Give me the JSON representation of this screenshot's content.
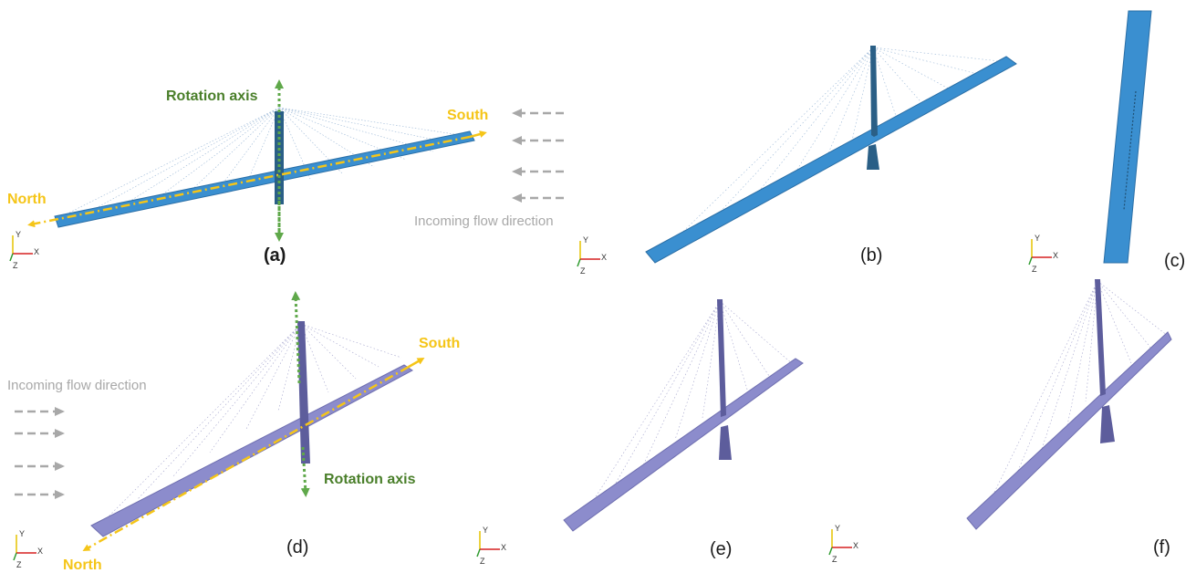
{
  "colors": {
    "blue_deck": "#3a8fd0",
    "blue_deck_dark": "#2b6fa6",
    "blue_tower": "#2a5f86",
    "purple_deck": "#8c8ccc",
    "purple_deck_dark": "#6f6fb0",
    "purple_tower": "#5d5d9c",
    "direction": "#f5c518",
    "rotation_axis": "#5fa84a",
    "rotation_label": "#4a7f2a",
    "flow": "#a8a8a8",
    "axis_x": "#d62020",
    "axis_y": "#e5c200",
    "axis_z": "#2e9a2e"
  },
  "panels": {
    "a": {
      "label": "(a)"
    },
    "b": {
      "label": "(b)"
    },
    "c": {
      "label": "(c)"
    },
    "d": {
      "label": "(d)"
    },
    "e": {
      "label": "(e)"
    },
    "f": {
      "label": "(f)"
    }
  },
  "annotations": {
    "north": "North",
    "south": "South",
    "rotation_axis": "Rotation axis",
    "incoming_flow": "Incoming flow direction"
  },
  "triad": {
    "x": "X",
    "y": "Y",
    "z": "Z"
  }
}
